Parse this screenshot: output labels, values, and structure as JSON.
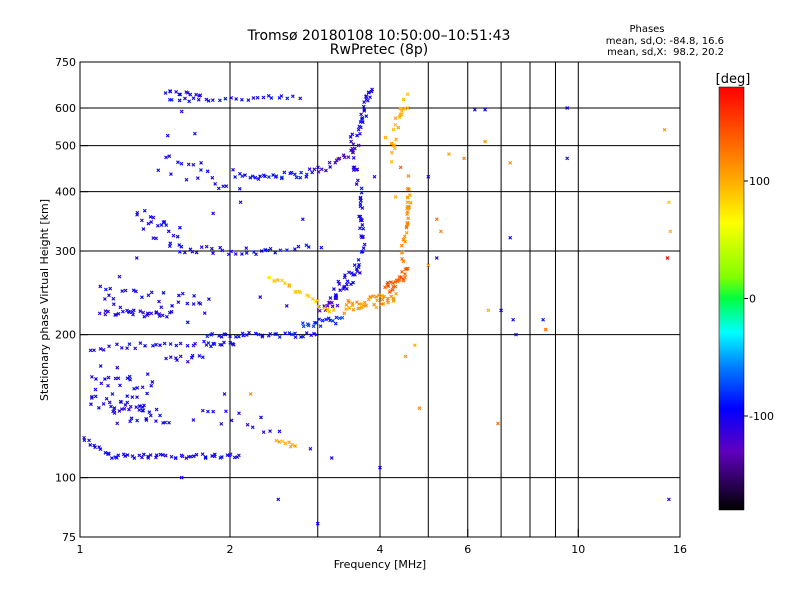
{
  "chart_data": {
    "type": "scatter",
    "title": "Tromsø 20180108 10:50:00–10:51:43",
    "subtitle": "RwPretec (8p)",
    "phases": {
      "title": "Phases",
      "line_o": "mean, sd,O: -84.8, 16.6",
      "line_x": "mean, sd,X:  98.2, 20.2"
    },
    "xlabel": "Frequency [MHz]",
    "ylabel": "Stationary phase Virtual Height [km]",
    "x_scale": "log",
    "y_scale": "log",
    "xlim": [
      1,
      16
    ],
    "ylim": [
      75,
      750
    ],
    "x_ticks": [
      1,
      2,
      4,
      6,
      10,
      16
    ],
    "x_tick_labels": [
      "1",
      "2",
      "4",
      "6",
      "10",
      "16"
    ],
    "x_minor_gridlines": [
      3,
      5,
      7,
      8,
      9
    ],
    "y_ticks": [
      75,
      100,
      200,
      300,
      400,
      500,
      600,
      750
    ],
    "y_tick_labels": [
      "75",
      "100",
      "200",
      "300",
      "400",
      "500",
      "600",
      "750"
    ],
    "grid": true,
    "colorbar": {
      "label": "[deg]",
      "ticks": [
        100,
        0,
        -100
      ],
      "tick_labels": [
        "100",
        "0",
        "-100"
      ],
      "range": [
        -180,
        180
      ]
    },
    "series": [
      {
        "traces": [
          {
            "x0": 1.48,
            "x1": 1.75,
            "y0": 648,
            "y1": 640,
            "phase": -100,
            "n": 12,
            "s": 0.01
          },
          {
            "x0": 1.5,
            "x1": 2.75,
            "y0": 625,
            "y1": 630,
            "phase": -95,
            "n": 26,
            "s": 0.012
          },
          {
            "x0": 1.45,
            "x1": 2.1,
            "y0": 455,
            "y1": 430,
            "phase": -100,
            "n": 20,
            "s": 0.07
          },
          {
            "x0": 2.1,
            "x1": 2.9,
            "y0": 430,
            "y1": 435,
            "phase": -92,
            "n": 26,
            "s": 0.015
          },
          {
            "x0": 2.9,
            "x1": 3.3,
            "y0": 440,
            "y1": 460,
            "phase": -110,
            "n": 10,
            "s": 0.02
          },
          {
            "x0": 1.3,
            "x1": 1.6,
            "y0": 355,
            "y1": 320,
            "phase": -100,
            "n": 24,
            "s": 0.07
          },
          {
            "x0": 1.6,
            "x1": 2.4,
            "y0": 302,
            "y1": 300,
            "phase": -98,
            "n": 22,
            "s": 0.02
          },
          {
            "x0": 2.4,
            "x1": 2.9,
            "y0": 300,
            "y1": 305,
            "phase": -95,
            "n": 8,
            "s": 0.015
          },
          {
            "x0": 1.1,
            "x1": 1.5,
            "y0": 222,
            "y1": 222,
            "phase": -105,
            "n": 22,
            "s": 0.015
          },
          {
            "x0": 1.1,
            "x1": 1.8,
            "y0": 240,
            "y1": 225,
            "phase": -100,
            "n": 36,
            "s": 0.07
          },
          {
            "x0": 1.8,
            "x1": 3.0,
            "y0": 200,
            "y1": 200,
            "phase": -95,
            "n": 34,
            "s": 0.012
          },
          {
            "x0": 2.8,
            "x1": 3.35,
            "y0": 210,
            "y1": 215,
            "phase": -80,
            "n": 18,
            "s": 0.02
          },
          {
            "x0": 1.05,
            "x1": 1.8,
            "y0": 188,
            "y1": 192,
            "phase": -100,
            "n": 24,
            "s": 0.015
          },
          {
            "x0": 1.8,
            "x1": 2.05,
            "y0": 190,
            "y1": 192,
            "phase": -95,
            "n": 10,
            "s": 0.012
          },
          {
            "x0": 1.5,
            "x1": 1.75,
            "y0": 178,
            "y1": 178,
            "phase": -100,
            "n": 10,
            "s": 0.015
          },
          {
            "x0": 1.05,
            "x1": 1.4,
            "y0": 160,
            "y1": 155,
            "phase": -100,
            "n": 28,
            "s": 0.09
          },
          {
            "x0": 1.05,
            "x1": 1.35,
            "y0": 142,
            "y1": 142,
            "phase": -100,
            "n": 18,
            "s": 0.05
          },
          {
            "x0": 1.15,
            "x1": 1.5,
            "y0": 138,
            "y1": 132,
            "phase": -100,
            "n": 24,
            "s": 0.06
          },
          {
            "x0": 1.7,
            "x1": 2.5,
            "y0": 133,
            "y1": 130,
            "phase": -100,
            "n": 14,
            "s": 0.05
          },
          {
            "x0": 1.0,
            "x1": 1.15,
            "y0": 122,
            "y1": 112,
            "phase": -100,
            "n": 12,
            "s": 0.01
          },
          {
            "x0": 1.15,
            "x1": 2.1,
            "y0": 111,
            "y1": 111,
            "phase": -100,
            "n": 44,
            "s": 0.01
          },
          {
            "x0": 3.85,
            "x1": 3.6,
            "y0": 660,
            "y1": 530,
            "phase": -100,
            "n": 24,
            "s": 0.03
          },
          {
            "x0": 3.5,
            "x1": 3.6,
            "y0": 520,
            "y1": 420,
            "phase": -105,
            "n": 16,
            "s": 0.03
          },
          {
            "x0": 3.65,
            "x1": 3.7,
            "y0": 400,
            "y1": 300,
            "phase": -100,
            "n": 24,
            "s": 0.02
          },
          {
            "x0": 3.2,
            "x1": 3.65,
            "y0": 240,
            "y1": 280,
            "phase": -100,
            "n": 32,
            "s": 0.04
          },
          {
            "x0": 3.0,
            "x1": 3.3,
            "y0": 225,
            "y1": 235,
            "phase": -120,
            "n": 10,
            "s": 0.02
          },
          {
            "x0": 3.3,
            "x1": 3.6,
            "y0": 460,
            "y1": 500,
            "phase": -130,
            "n": 8,
            "s": 0.02
          },
          {
            "x0": 2.4,
            "x1": 3.2,
            "y0": 265,
            "y1": 225,
            "phase": 90,
            "n": 22,
            "s": 0.015
          },
          {
            "x0": 3.4,
            "x1": 4.3,
            "y0": 228,
            "y1": 240,
            "phase": 110,
            "n": 40,
            "s": 0.03
          },
          {
            "x0": 4.1,
            "x1": 4.55,
            "y0": 250,
            "y1": 270,
            "phase": 140,
            "n": 26,
            "s": 0.03
          },
          {
            "x0": 4.45,
            "x1": 4.6,
            "y0": 290,
            "y1": 420,
            "phase": 115,
            "n": 30,
            "s": 0.05
          },
          {
            "x0": 4.2,
            "x1": 4.5,
            "y0": 480,
            "y1": 640,
            "phase": 100,
            "n": 20,
            "s": 0.04
          },
          {
            "x0": 2.5,
            "x1": 2.7,
            "y0": 120,
            "y1": 116,
            "phase": 100,
            "n": 8,
            "s": 0.01
          }
        ],
        "scatter": [
          [
            1.6,
            590,
            -100
          ],
          [
            1.5,
            525,
            -95
          ],
          [
            1.7,
            530,
            -90
          ],
          [
            1.75,
            460,
            -100
          ],
          [
            1.85,
            360,
            -100
          ],
          [
            2.1,
            380,
            -105
          ],
          [
            2.8,
            350,
            -100
          ],
          [
            3.05,
            305,
            -95
          ],
          [
            1.3,
            290,
            -100
          ],
          [
            1.2,
            265,
            -105
          ],
          [
            1.15,
            250,
            -100
          ],
          [
            2.3,
            240,
            -110
          ],
          [
            2.6,
            230,
            -100
          ],
          [
            1.95,
            150,
            -100
          ],
          [
            2.2,
            150,
            120
          ],
          [
            2.9,
            115,
            -110
          ],
          [
            2.5,
            90,
            -100
          ],
          [
            3.0,
            80,
            -100
          ],
          [
            1.6,
            100,
            -100
          ],
          [
            3.2,
            110,
            -100
          ],
          [
            4.0,
            105,
            -100
          ],
          [
            4.1,
            520,
            100
          ],
          [
            4.55,
            600,
            100
          ],
          [
            4.25,
            500,
            110
          ],
          [
            5.2,
            350,
            130
          ],
          [
            5.3,
            330,
            120
          ],
          [
            5.2,
            290,
            -100
          ],
          [
            5.0,
            280,
            110
          ],
          [
            5.9,
            470,
            120
          ],
          [
            4.3,
            390,
            100
          ],
          [
            4.5,
            180,
            110
          ],
          [
            4.7,
            190,
            100
          ],
          [
            4.8,
            140,
            120
          ],
          [
            6.2,
            595,
            -100
          ],
          [
            6.5,
            595,
            -95
          ],
          [
            6.5,
            510,
            110
          ],
          [
            6.6,
            225,
            100
          ],
          [
            7.0,
            225,
            -100
          ],
          [
            7.3,
            460,
            115
          ],
          [
            7.4,
            215,
            -100
          ],
          [
            7.5,
            200,
            -100
          ],
          [
            8.5,
            215,
            -90
          ],
          [
            8.6,
            205,
            130
          ],
          [
            9.5,
            600,
            -100
          ],
          [
            9.5,
            470,
            -100
          ],
          [
            7.3,
            320,
            -95
          ],
          [
            6.9,
            130,
            130
          ],
          [
            14.9,
            540,
            110
          ],
          [
            15.2,
            380,
            90
          ],
          [
            15.3,
            330,
            100
          ],
          [
            15.1,
            290,
            180
          ],
          [
            15.2,
            90,
            -110
          ],
          [
            5.5,
            480,
            100
          ],
          [
            5.0,
            430,
            -100
          ],
          [
            4.4,
            450,
            140
          ],
          [
            3.9,
            430,
            -100
          ]
        ]
      }
    ]
  }
}
